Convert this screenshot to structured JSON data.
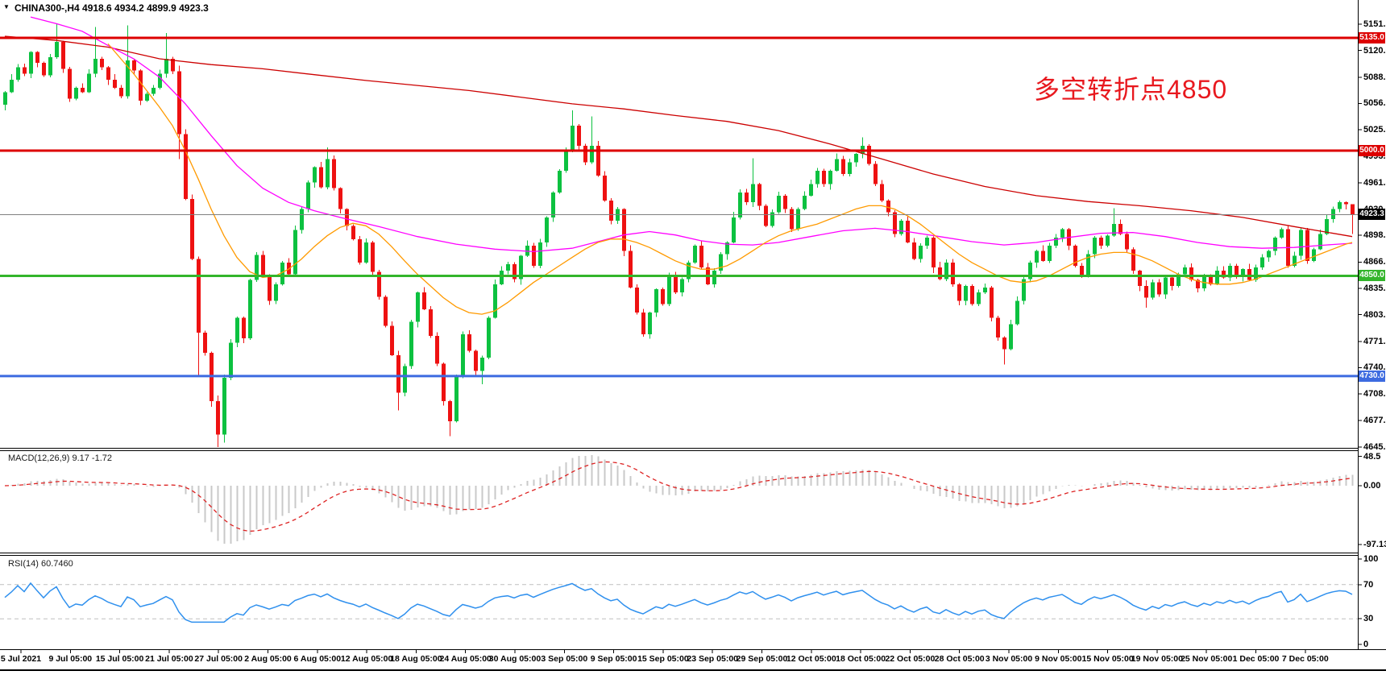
{
  "window_title": "CHINA300-,H4",
  "header": {
    "arrow_glyph": "▼",
    "symbol_line": "CHINA300-,H4  4918.6 4934.2 4899.9 4923.3",
    "symbol": "CHINA300-",
    "timeframe": "H4",
    "ohlc": {
      "open": 4918.6,
      "high": 4934.2,
      "low": 4899.9,
      "close": 4923.3
    }
  },
  "annotation": {
    "text": "多空转折点4850",
    "color": "#e8181e"
  },
  "chart_data": {
    "type": "candlestick",
    "title": "CHINA300-,H4",
    "ylim": [
      4643.0,
      5180.4
    ],
    "price_axis_ticks": [
      5151.5,
      5120.0,
      5088.0,
      5056.5,
      5025.0,
      4993.5,
      4961.5,
      4930.0,
      4898.5,
      4866.5,
      4835.0,
      4803.5,
      4771.5,
      4740.0,
      4708.5,
      4677.0,
      4645.0
    ],
    "price_badges": [
      {
        "label": "5135.0",
        "price": 5135.0,
        "bg": "#dd0000"
      },
      {
        "label": "5000.0",
        "price": 5000.0,
        "bg": "#dd0000"
      },
      {
        "label": "4923.3",
        "price": 4923.3,
        "bg": "#000000"
      },
      {
        "label": "4850.0",
        "price": 4850.0,
        "bg": "#33b52b"
      },
      {
        "label": "4730.0",
        "price": 4730.0,
        "bg": "#3d6be0"
      }
    ],
    "horizontal_lines": [
      {
        "price": 5135.0,
        "color": "#dd0000",
        "width": 3
      },
      {
        "price": 5000.0,
        "color": "#dd0000",
        "width": 3
      },
      {
        "price": 4850.0,
        "color": "#33b52b",
        "width": 3
      },
      {
        "price": 4730.0,
        "color": "#3d6be0",
        "width": 3
      },
      {
        "price": 4923.3,
        "color": "#808080",
        "width": 1
      }
    ],
    "candle_colors": {
      "up": "#0cc140",
      "down": "#ee1111"
    },
    "closes": [
      5070,
      5085,
      5100,
      5092,
      5118,
      5105,
      5090,
      5112,
      5130,
      5098,
      5062,
      5075,
      5070,
      5092,
      5110,
      5100,
      5085,
      5075,
      5065,
      5108,
      5096,
      5060,
      5068,
      5075,
      5092,
      5110,
      5095,
      5020,
      4942,
      4870,
      4782,
      4758,
      4700,
      4660,
      4728,
      4770,
      4800,
      4775,
      4845,
      4875,
      4850,
      4820,
      4840,
      4866,
      4852,
      4905,
      4930,
      4962,
      4980,
      4956,
      4990,
      4955,
      4930,
      4910,
      4894,
      4866,
      4890,
      4855,
      4825,
      4790,
      4755,
      4710,
      4742,
      4795,
      4830,
      4810,
      4778,
      4745,
      4700,
      4676,
      4730,
      4780,
      4760,
      4736,
      4752,
      4800,
      4840,
      4856,
      4864,
      4846,
      4874,
      4886,
      4862,
      4890,
      4920,
      4950,
      4976,
      5000,
      5030,
      5006,
      4986,
      5006,
      4970,
      4940,
      4916,
      4930,
      4880,
      4836,
      4806,
      4780,
      4806,
      4834,
      4816,
      4850,
      4830,
      4846,
      4866,
      4886,
      4860,
      4840,
      4856,
      4876,
      4890,
      4920,
      4950,
      4938,
      4960,
      4934,
      4910,
      4926,
      4946,
      4930,
      4906,
      4930,
      4946,
      4960,
      4976,
      4960,
      4976,
      4990,
      4972,
      4986,
      4996,
      5006,
      4984,
      4960,
      4940,
      4926,
      4900,
      4916,
      4890,
      4870,
      4886,
      4896,
      4860,
      4846,
      4866,
      4840,
      4820,
      4838,
      4816,
      4830,
      4836,
      4800,
      4776,
      4762,
      4792,
      4820,
      4846,
      4866,
      4880,
      4868,
      4886,
      4896,
      4906,
      4886,
      4862,
      4850,
      4876,
      4896,
      4886,
      4898,
      4912,
      4900,
      4882,
      4856,
      4838,
      4824,
      4842,
      4828,
      4848,
      4838,
      4852,
      4860,
      4845,
      4835,
      4850,
      4840,
      4856,
      4848,
      4862,
      4850,
      4858,
      4845,
      4860,
      4872,
      4880,
      4896,
      4906,
      4862,
      4874,
      4905,
      4868,
      4882,
      4900,
      4918,
      4930,
      4938,
      4936,
      4923.3
    ],
    "open_first": 5055,
    "wick_pattern": [
      3,
      7,
      2,
      9,
      4,
      6,
      2,
      11,
      5,
      3,
      8,
      2,
      6,
      4,
      9,
      3
    ],
    "wick_overrides": {
      "8": [
        5151.5,
        null
      ],
      "14": [
        5148,
        null
      ],
      "19": [
        5150,
        null
      ],
      "25": [
        5141,
        null
      ],
      "27": [
        5102,
        4990
      ],
      "30": [
        null,
        4729
      ],
      "33": [
        null,
        4645
      ],
      "34": [
        null,
        4650
      ],
      "50": [
        5004,
        null
      ],
      "61": [
        null,
        4689
      ],
      "69": [
        null,
        4658
      ],
      "74": [
        null,
        4720
      ],
      "88": [
        5048,
        null
      ],
      "91": [
        5041,
        null
      ],
      "116": [
        4991,
        null
      ],
      "133": [
        5016,
        null
      ],
      "155": [
        null,
        4744
      ],
      "172": [
        4931,
        null
      ],
      "177": [
        null,
        4812
      ],
      "199": [
        4910,
        null
      ],
      "209": [
        4934.2,
        4899.9
      ]
    },
    "moving_averages": [
      {
        "name": "ma-slow-red",
        "color": "#cc0000",
        "points": [
          [
            0,
            5137
          ],
          [
            8,
            5132
          ],
          [
            16,
            5124
          ],
          [
            24,
            5110
          ],
          [
            32,
            5103
          ],
          [
            40,
            5098
          ],
          [
            48,
            5091
          ],
          [
            56,
            5084
          ],
          [
            64,
            5078
          ],
          [
            72,
            5072
          ],
          [
            80,
            5064
          ],
          [
            88,
            5056
          ],
          [
            96,
            5050
          ],
          [
            104,
            5042
          ],
          [
            112,
            5035
          ],
          [
            120,
            5024
          ],
          [
            128,
            5008
          ],
          [
            136,
            4990
          ],
          [
            144,
            4972
          ],
          [
            152,
            4957
          ],
          [
            160,
            4946
          ],
          [
            168,
            4939
          ],
          [
            176,
            4934
          ],
          [
            184,
            4928
          ],
          [
            192,
            4920
          ],
          [
            200,
            4909
          ],
          [
            209,
            4897
          ]
        ]
      },
      {
        "name": "ma-mid-magenta",
        "color": "#ff00ff",
        "points": [
          [
            4,
            5160
          ],
          [
            8,
            5152
          ],
          [
            12,
            5143
          ],
          [
            16,
            5126
          ],
          [
            20,
            5110
          ],
          [
            24,
            5088
          ],
          [
            28,
            5056
          ],
          [
            32,
            5018
          ],
          [
            36,
            4982
          ],
          [
            40,
            4955
          ],
          [
            44,
            4938
          ],
          [
            48,
            4928
          ],
          [
            52,
            4920
          ],
          [
            58,
            4909
          ],
          [
            64,
            4897
          ],
          [
            70,
            4888
          ],
          [
            76,
            4882
          ],
          [
            82,
            4879
          ],
          [
            88,
            4883
          ],
          [
            92,
            4891
          ],
          [
            96,
            4899
          ],
          [
            100,
            4903
          ],
          [
            104,
            4899
          ],
          [
            108,
            4892
          ],
          [
            112,
            4888
          ],
          [
            116,
            4887
          ],
          [
            120,
            4890
          ],
          [
            125,
            4897
          ],
          [
            130,
            4904
          ],
          [
            135,
            4907
          ],
          [
            140,
            4903
          ],
          [
            145,
            4897
          ],
          [
            150,
            4891
          ],
          [
            155,
            4887
          ],
          [
            160,
            4890
          ],
          [
            165,
            4896
          ],
          [
            170,
            4901
          ],
          [
            175,
            4902
          ],
          [
            180,
            4897
          ],
          [
            185,
            4890
          ],
          [
            190,
            4885
          ],
          [
            195,
            4883
          ],
          [
            200,
            4884
          ],
          [
            205,
            4887
          ],
          [
            209,
            4889
          ]
        ]
      },
      {
        "name": "ma-fast-orange",
        "color": "#ff9a00",
        "points": [
          [
            16,
            5128
          ],
          [
            18,
            5110
          ],
          [
            20,
            5092
          ],
          [
            22,
            5072
          ],
          [
            24,
            5052
          ],
          [
            26,
            5030
          ],
          [
            28,
            5000
          ],
          [
            30,
            4966
          ],
          [
            32,
            4930
          ],
          [
            34,
            4898
          ],
          [
            36,
            4872
          ],
          [
            38,
            4855
          ],
          [
            40,
            4848
          ],
          [
            42,
            4850
          ],
          [
            44,
            4858
          ],
          [
            46,
            4870
          ],
          [
            48,
            4885
          ],
          [
            50,
            4898
          ],
          [
            52,
            4908
          ],
          [
            54,
            4913
          ],
          [
            56,
            4910
          ],
          [
            58,
            4900
          ],
          [
            60,
            4885
          ],
          [
            62,
            4868
          ],
          [
            64,
            4852
          ],
          [
            66,
            4838
          ],
          [
            68,
            4824
          ],
          [
            70,
            4813
          ],
          [
            72,
            4806
          ],
          [
            74,
            4804
          ],
          [
            76,
            4808
          ],
          [
            78,
            4818
          ],
          [
            80,
            4830
          ],
          [
            82,
            4842
          ],
          [
            84,
            4852
          ],
          [
            86,
            4862
          ],
          [
            88,
            4872
          ],
          [
            90,
            4882
          ],
          [
            92,
            4890
          ],
          [
            94,
            4894
          ],
          [
            96,
            4894
          ],
          [
            98,
            4890
          ],
          [
            100,
            4884
          ],
          [
            102,
            4876
          ],
          [
            104,
            4868
          ],
          [
            106,
            4862
          ],
          [
            108,
            4858
          ],
          [
            110,
            4858
          ],
          [
            112,
            4862
          ],
          [
            114,
            4870
          ],
          [
            116,
            4880
          ],
          [
            118,
            4890
          ],
          [
            120,
            4898
          ],
          [
            122,
            4904
          ],
          [
            124,
            4908
          ],
          [
            126,
            4912
          ],
          [
            128,
            4918
          ],
          [
            130,
            4924
          ],
          [
            132,
            4930
          ],
          [
            134,
            4934
          ],
          [
            136,
            4934
          ],
          [
            138,
            4930
          ],
          [
            140,
            4922
          ],
          [
            142,
            4912
          ],
          [
            144,
            4900
          ],
          [
            146,
            4888
          ],
          [
            148,
            4876
          ],
          [
            150,
            4866
          ],
          [
            152,
            4858
          ],
          [
            154,
            4850
          ],
          [
            156,
            4844
          ],
          [
            158,
            4842
          ],
          [
            160,
            4844
          ],
          [
            162,
            4850
          ],
          [
            164,
            4858
          ],
          [
            166,
            4866
          ],
          [
            168,
            4872
          ],
          [
            170,
            4876
          ],
          [
            172,
            4878
          ],
          [
            174,
            4878
          ],
          [
            176,
            4874
          ],
          [
            178,
            4868
          ],
          [
            180,
            4860
          ],
          [
            182,
            4852
          ],
          [
            184,
            4846
          ],
          [
            186,
            4842
          ],
          [
            188,
            4840
          ],
          [
            190,
            4840
          ],
          [
            192,
            4842
          ],
          [
            194,
            4846
          ],
          [
            196,
            4852
          ],
          [
            198,
            4858
          ],
          [
            200,
            4864
          ],
          [
            202,
            4870
          ],
          [
            204,
            4876
          ],
          [
            206,
            4882
          ],
          [
            208,
            4888
          ],
          [
            209,
            4890
          ]
        ]
      }
    ],
    "indicators": {
      "macd": {
        "label": "MACD(12,26,9) 9.17 -1.72",
        "params": [
          12,
          26,
          9
        ],
        "value": 9.17,
        "signal": -1.72,
        "axis_ticks": [
          "48.5",
          "0.00",
          "-97.13"
        ],
        "axis_values": [
          48.5,
          0,
          -97.13
        ],
        "histogram_color": "#c9c9c9",
        "signal_color": "#dd2222"
      },
      "rsi": {
        "label": "RSI(14) 60.7460",
        "period": 14,
        "value": 60.746,
        "axis_ticks": [
          "100",
          "70",
          "30",
          "0"
        ],
        "axis_values": [
          100,
          70,
          30,
          0
        ],
        "levels": [
          70,
          30
        ],
        "line_color": "#2f90ee",
        "level_color": "#bfbfbf"
      }
    },
    "time_axis_labels": [
      "5 Jul 2021",
      "9 Jul 05:00",
      "15 Jul 05:00",
      "21 Jul 05:00",
      "27 Jul 05:00",
      "2 Aug 05:00",
      "6 Aug 05:00",
      "12 Aug 05:00",
      "18 Aug 05:00",
      "24 Aug 05:00",
      "30 Aug 05:00",
      "3 Sep 05:00",
      "9 Sep 05:00",
      "15 Sep 05:00",
      "23 Sep 05:00",
      "29 Sep 05:00",
      "12 Oct 05:00",
      "18 Oct 05:00",
      "22 Oct 05:00",
      "28 Oct 05:00",
      "3 Nov 05:00",
      "9 Nov 05:00",
      "15 Nov 05:00",
      "19 Nov 05:00",
      "25 Nov 05:00",
      "1 Dec 05:00",
      "7 Dec 05:00"
    ]
  }
}
